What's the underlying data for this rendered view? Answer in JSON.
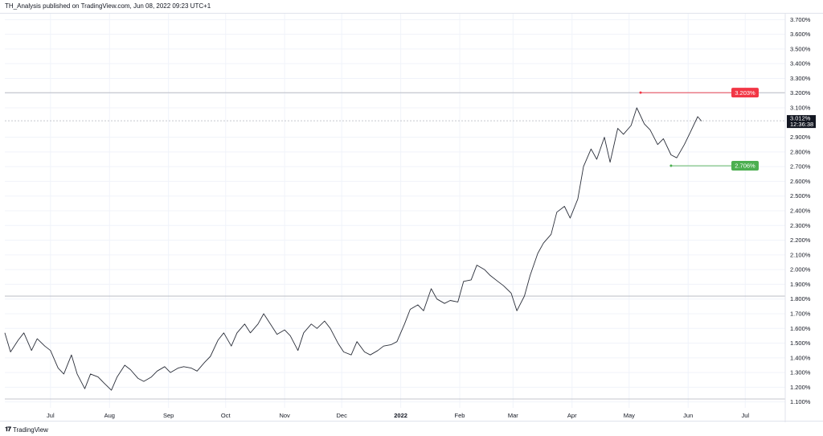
{
  "header": {
    "published_text": "TH_Analysis published on TradingView.com, Jun 08, 2022 09:23 UTC+1"
  },
  "footer": {
    "logo_glyph": "𝟏𝟕",
    "brand": "TradingView"
  },
  "colors": {
    "line": "#2a2e39",
    "grid": "#f0f3fa",
    "hline": "#b2b5be",
    "current_bg": "#131722",
    "red": "#f23645",
    "green": "#4caf50"
  },
  "chart_data": {
    "type": "line",
    "title": "",
    "xlabel": "",
    "ylabel": "",
    "ylim": [
      1.06,
      3.74
    ],
    "x_ticks": [
      "Jul",
      "Aug",
      "Sep",
      "Oct",
      "Nov",
      "Dec",
      "2022",
      "Feb",
      "Mar",
      "Apr",
      "May",
      "Jun",
      "Jul"
    ],
    "y_ticks": [
      "3.700%",
      "3.600%",
      "3.500%",
      "3.400%",
      "3.300%",
      "3.200%",
      "3.100%",
      "2.900%",
      "2.800%",
      "2.700%",
      "2.600%",
      "2.500%",
      "2.400%",
      "2.300%",
      "2.200%",
      "2.100%",
      "2.000%",
      "1.900%",
      "1.800%",
      "1.700%",
      "1.600%",
      "1.500%",
      "1.400%",
      "1.300%",
      "1.200%",
      "1.100%"
    ],
    "x_dates": [
      "2021-06-07",
      "2021-06-10",
      "2021-06-14",
      "2021-06-17",
      "2021-06-21",
      "2021-06-24",
      "2021-06-28",
      "2021-07-01",
      "2021-07-05",
      "2021-07-08",
      "2021-07-12",
      "2021-07-15",
      "2021-07-19",
      "2021-07-22",
      "2021-07-26",
      "2021-07-29",
      "2021-08-02",
      "2021-08-05",
      "2021-08-09",
      "2021-08-12",
      "2021-08-16",
      "2021-08-19",
      "2021-08-23",
      "2021-08-26",
      "2021-08-30",
      "2021-09-02",
      "2021-09-06",
      "2021-09-09",
      "2021-09-13",
      "2021-09-16",
      "2021-09-20",
      "2021-09-23",
      "2021-09-27",
      "2021-09-30",
      "2021-10-04",
      "2021-10-07",
      "2021-10-11",
      "2021-10-14",
      "2021-10-18",
      "2021-10-21",
      "2021-10-25",
      "2021-10-28",
      "2021-11-01",
      "2021-11-04",
      "2021-11-08",
      "2021-11-11",
      "2021-11-15",
      "2021-11-18",
      "2021-11-22",
      "2021-11-25",
      "2021-11-29",
      "2021-12-02",
      "2021-12-06",
      "2021-12-09",
      "2021-12-13",
      "2021-12-16",
      "2021-12-20",
      "2021-12-23",
      "2021-12-27",
      "2021-12-30",
      "2022-01-03",
      "2022-01-06",
      "2022-01-10",
      "2022-01-13",
      "2022-01-17",
      "2022-01-20",
      "2022-01-24",
      "2022-01-27",
      "2022-01-31",
      "2022-02-03",
      "2022-02-07",
      "2022-02-10",
      "2022-02-14",
      "2022-02-17",
      "2022-02-21",
      "2022-02-24",
      "2022-02-28",
      "2022-03-03",
      "2022-03-07",
      "2022-03-10",
      "2022-03-14",
      "2022-03-17",
      "2022-03-21",
      "2022-03-24",
      "2022-03-28",
      "2022-03-31",
      "2022-04-04",
      "2022-04-07",
      "2022-04-11",
      "2022-04-14",
      "2022-04-18",
      "2022-04-21",
      "2022-04-25",
      "2022-04-28",
      "2022-05-02",
      "2022-05-05",
      "2022-05-09",
      "2022-05-12",
      "2022-05-16",
      "2022-05-19",
      "2022-05-23",
      "2022-05-26",
      "2022-05-30",
      "2022-06-02",
      "2022-06-06",
      "2022-06-08"
    ],
    "y_values": [
      1.57,
      1.44,
      1.52,
      1.57,
      1.45,
      1.53,
      1.48,
      1.45,
      1.33,
      1.29,
      1.42,
      1.29,
      1.19,
      1.29,
      1.27,
      1.23,
      1.18,
      1.27,
      1.35,
      1.32,
      1.26,
      1.24,
      1.27,
      1.31,
      1.34,
      1.3,
      1.33,
      1.34,
      1.33,
      1.31,
      1.37,
      1.41,
      1.52,
      1.57,
      1.48,
      1.57,
      1.63,
      1.57,
      1.63,
      1.7,
      1.62,
      1.56,
      1.59,
      1.55,
      1.45,
      1.57,
      1.63,
      1.6,
      1.65,
      1.6,
      1.5,
      1.44,
      1.42,
      1.51,
      1.44,
      1.42,
      1.45,
      1.48,
      1.49,
      1.51,
      1.63,
      1.73,
      1.76,
      1.72,
      1.87,
      1.8,
      1.77,
      1.79,
      1.78,
      1.92,
      1.93,
      2.03,
      2.0,
      1.96,
      1.92,
      1.89,
      1.84,
      1.72,
      1.82,
      1.96,
      2.11,
      2.18,
      2.24,
      2.39,
      2.43,
      2.35,
      2.48,
      2.7,
      2.82,
      2.75,
      2.9,
      2.73,
      2.96,
      2.92,
      2.98,
      3.1,
      2.99,
      2.95,
      2.85,
      2.89,
      2.78,
      2.76,
      2.85,
      2.93,
      3.04,
      3.01
    ],
    "current_value": "3.012%",
    "countdown": "12:36:38",
    "annotations": [
      {
        "label": "3.203%",
        "value": 3.203,
        "start": "2022-05-07",
        "color": "red"
      },
      {
        "label": "2.706%",
        "value": 2.706,
        "start": "2022-05-23",
        "color": "green"
      }
    ],
    "horizontal_lines": [
      3.203,
      3.012,
      1.82,
      1.12
    ],
    "x_range": [
      "2021-06-07",
      "2022-07-22"
    ],
    "grid": true
  }
}
